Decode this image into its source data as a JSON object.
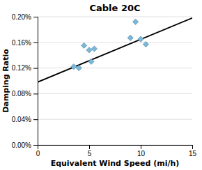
{
  "chart_data": {
    "type": "scatter",
    "title": "Cable 20C",
    "xlabel": "Equivalent Wind Speed (mi/h)",
    "ylabel": "Damping Ratio",
    "series": [
      {
        "type": "line",
        "x": [
          0,
          15
        ],
        "values": [
          0.00098,
          0.00198
        ],
        "color": "#000000",
        "line_style": "solid"
      },
      {
        "type": "scatter",
        "x": [
          3.5,
          4.0,
          4.5,
          5.0,
          5.2,
          5.5,
          9.0,
          9.5,
          10.0,
          10.5
        ],
        "values": [
          0.00122,
          0.0012,
          0.00155,
          0.00148,
          0.0013,
          0.0015,
          0.00167,
          0.00192,
          0.00165,
          0.00157
        ],
        "color": "#7ab8d9",
        "marker": "diamond"
      }
    ],
    "xlim": [
      0,
      15
    ],
    "ylim": [
      0.0,
      0.002
    ],
    "xticks": [
      0,
      5,
      10,
      15
    ],
    "yticks": [
      {
        "value": 0.0,
        "label": "0.00%"
      },
      {
        "value": 0.0004,
        "label": "0.04%"
      },
      {
        "value": 0.0008,
        "label": "0.08%"
      },
      {
        "value": 0.0012,
        "label": "0.12%"
      },
      {
        "value": 0.0016,
        "label": "0.16%"
      },
      {
        "value": 0.002,
        "label": "0.20%"
      }
    ],
    "grid": "y"
  }
}
